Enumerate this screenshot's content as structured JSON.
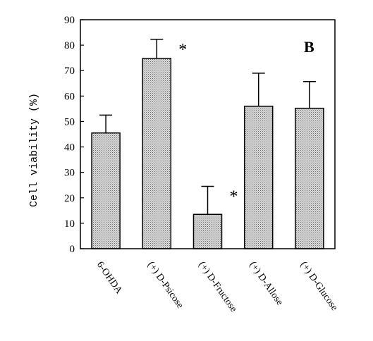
{
  "chart_data": {
    "type": "bar",
    "title": "",
    "panel_label": "B",
    "xlabel": "",
    "ylabel": "Cell viability (%)",
    "ylim": [
      0,
      90
    ],
    "yticks": [
      0,
      10,
      20,
      30,
      40,
      50,
      60,
      70,
      80,
      90
    ],
    "grid": false,
    "bar_color": "#c8c8c8",
    "bar_pattern": "dotted",
    "categories": [
      "6-OHDA",
      "(+) D-Psicose",
      "(+) D-Fructose",
      "(+) D-Allose",
      "(+) D-Glucose"
    ],
    "values": [
      45.5,
      74.8,
      13.5,
      56.0,
      55.2
    ],
    "errors": [
      7.0,
      7.5,
      11.0,
      13.0,
      10.5
    ],
    "significance": [
      "",
      "*",
      "*",
      "",
      ""
    ]
  }
}
